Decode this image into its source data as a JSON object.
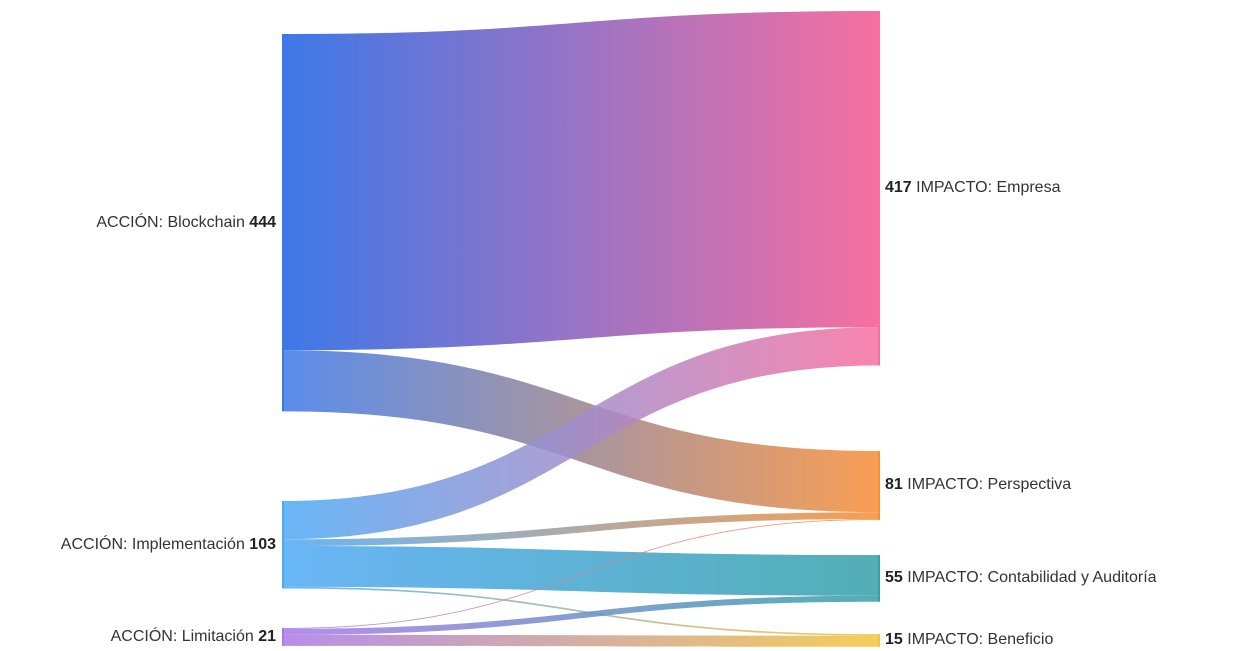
{
  "chart_data": {
    "type": "sankey",
    "sources": [
      {
        "id": "blockchain",
        "label": "ACCIÓN: Blockchain",
        "value": 444,
        "color": "#3d78e8"
      },
      {
        "id": "implementacion",
        "label": "ACCIÓN: Implementación",
        "value": 103,
        "color": "#4ea9f5"
      },
      {
        "id": "limitacion",
        "label": "ACCIÓN: Limitación",
        "value": 21,
        "color": "#a97ae8"
      }
    ],
    "targets": [
      {
        "id": "empresa",
        "label": "IMPACTO: Empresa",
        "value": 417,
        "color": "#f76fa0"
      },
      {
        "id": "perspectiva",
        "label": "IMPACTO: Perspectiva",
        "value": 81,
        "color": "#f78d36"
      },
      {
        "id": "contabilidad",
        "label": "IMPACTO: Contabilidad y Auditoría",
        "value": 55,
        "color": "#35a0a8"
      },
      {
        "id": "beneficio",
        "label": "IMPACTO: Beneficio",
        "value": 15,
        "color": "#f2c53d"
      }
    ],
    "links": [
      {
        "source": "blockchain",
        "target": "empresa",
        "value": 372
      },
      {
        "source": "blockchain",
        "target": "perspectiva",
        "value": 72
      },
      {
        "source": "implementacion",
        "target": "empresa",
        "value": 45
      },
      {
        "source": "implementacion",
        "target": "perspectiva",
        "value": 8
      },
      {
        "source": "implementacion",
        "target": "contabilidad",
        "value": 48
      },
      {
        "source": "implementacion",
        "target": "beneficio",
        "value": 2
      },
      {
        "source": "limitacion",
        "target": "perspectiva",
        "value": 1
      },
      {
        "source": "limitacion",
        "target": "contabilidad",
        "value": 7
      },
      {
        "source": "limitacion",
        "target": "beneficio",
        "value": 13
      }
    ]
  }
}
